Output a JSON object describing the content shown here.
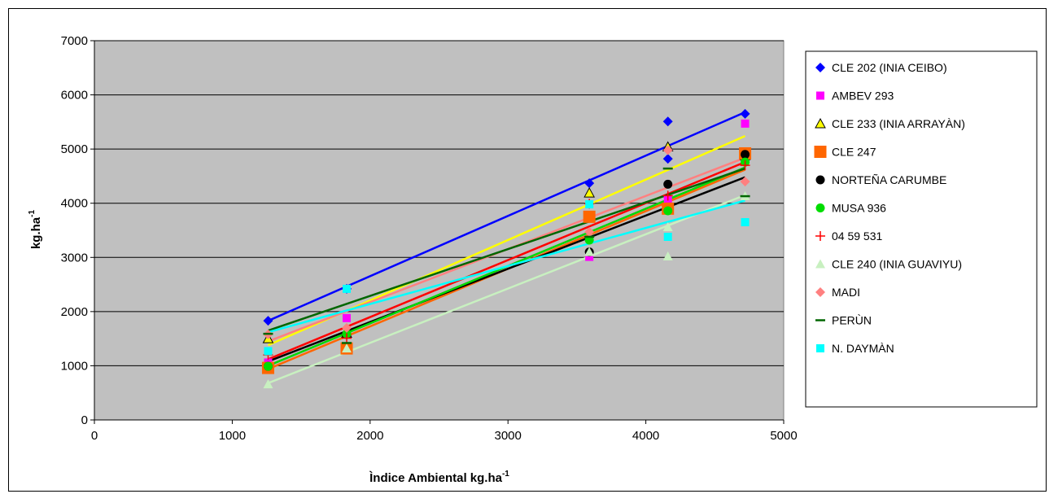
{
  "chart_data": {
    "type": "scatter",
    "title": "",
    "xlabel": "Ìndice Ambiental kg.ha",
    "xlabel_sup": "-1",
    "ylabel": "kg.ha",
    "ylabel_sup": "-1",
    "xlim": [
      0,
      5000
    ],
    "ylim": [
      0,
      7000
    ],
    "xticks": [
      "0",
      "1000",
      "2000",
      "3000",
      "4000",
      "5000"
    ],
    "yticks": [
      "0",
      "1000",
      "2000",
      "3000",
      "4000",
      "5000",
      "6000",
      "7000"
    ],
    "grid": "horizontal",
    "plot_background": "#c0c0c0",
    "legend_position": "right",
    "trendlines": true,
    "x": [
      1260,
      1830,
      3590,
      4160,
      4720
    ],
    "series": [
      {
        "name": "CLE 202 (INIA CEIBO)",
        "marker": "diamond",
        "color": "#0000ff",
        "values": [
          1830,
          2420,
          4370,
          5510,
          5650
        ],
        "extra": [
          [
            4160,
            4820
          ]
        ],
        "fit": [
          [
            1260,
            1830
          ],
          [
            4720,
            5680
          ]
        ]
      },
      {
        "name": "AMBEV 293",
        "marker": "square",
        "color": "#ff00ff",
        "values": [
          1060,
          1880,
          3010,
          4070,
          5470
        ],
        "fit": [
          [
            1260,
            1000
          ],
          [
            4720,
            4660
          ]
        ]
      },
      {
        "name": "CLE 233 (INIA ARRAYÀN)",
        "marker": "triangle",
        "color": "#ffff00",
        "values": [
          1500,
          1600,
          4190,
          5040,
          4880
        ],
        "outline": "#000000",
        "fit": [
          [
            1260,
            1380
          ],
          [
            4720,
            5240
          ]
        ]
      },
      {
        "name": "CLE 247",
        "marker": "square-large",
        "color": "#ff6600",
        "values": [
          960,
          1320,
          3750,
          3900,
          4920
        ],
        "fit": [
          [
            1260,
            940
          ],
          [
            4720,
            4620
          ]
        ]
      },
      {
        "name": "NORTEÑA CARUMBE",
        "marker": "circle",
        "color": "#000000",
        "values": [
          990,
          1580,
          3100,
          4350,
          4900
        ],
        "fit": [
          [
            1260,
            1080
          ],
          [
            4720,
            4480
          ]
        ]
      },
      {
        "name": "MUSA 936",
        "marker": "circle",
        "color": "#00dd00",
        "values": [
          990,
          1590,
          3320,
          3860,
          4760
        ],
        "fit": [
          [
            1260,
            1000
          ],
          [
            4720,
            4660
          ]
        ]
      },
      {
        "name": "04 59 531",
        "marker": "plus",
        "color": "#ff0000",
        "values": [
          1200,
          1510,
          3990,
          4140,
          4700
        ],
        "fit": [
          [
            1260,
            1120
          ],
          [
            4720,
            4760
          ]
        ]
      },
      {
        "name": "CLE 240 (INIA GUAVIYU)",
        "marker": "triangle",
        "color": "#c8f0c0",
        "values": [
          660,
          1320,
          3100,
          3020,
          4130
        ],
        "extra": [
          [
            4160,
            3560
          ]
        ],
        "fit": [
          [
            1260,
            680
          ],
          [
            4720,
            4150
          ]
        ]
      },
      {
        "name": "MADI",
        "marker": "diamond",
        "color": "#ff8080",
        "values": [
          1580,
          1700,
          3470,
          4980,
          4400
        ],
        "fit": [
          [
            1260,
            1450
          ],
          [
            4720,
            4840
          ]
        ]
      },
      {
        "name": "PERÙN",
        "marker": "dash",
        "color": "#006600",
        "values": [
          1590,
          1420,
          3380,
          4640,
          4130
        ],
        "fit": [
          [
            1260,
            1650
          ],
          [
            4720,
            4640
          ]
        ]
      },
      {
        "name": "N. DAYMÀN",
        "marker": "square",
        "color": "#00ffff",
        "values": [
          1270,
          2420,
          3980,
          3380,
          3650
        ],
        "fit": [
          [
            1260,
            1620
          ],
          [
            4720,
            4050
          ]
        ]
      }
    ]
  }
}
